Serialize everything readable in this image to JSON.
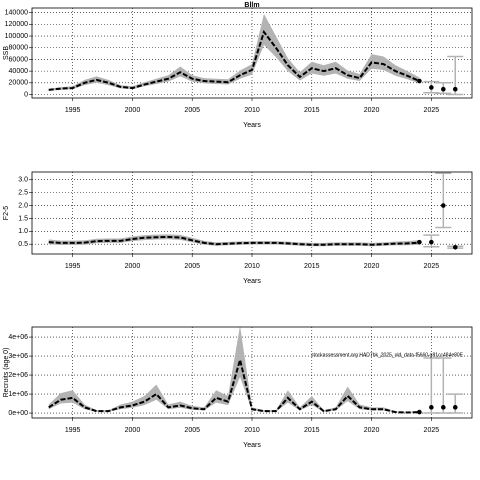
{
  "chart_data": [
    {
      "type": "line",
      "title": "Bllm",
      "y_label": "SSB",
      "x_label": "Years",
      "x": [
        1993,
        1994,
        1995,
        1996,
        1997,
        1998,
        1999,
        2000,
        2001,
        2002,
        2003,
        2004,
        2005,
        2006,
        2007,
        2008,
        2009,
        2010,
        2011,
        2012,
        2013,
        2014,
        2015,
        2016,
        2017,
        2018,
        2019,
        2020,
        2021,
        2022,
        2023,
        2024
      ],
      "values": [
        8000,
        10000,
        11000,
        20000,
        25000,
        20000,
        13000,
        11000,
        17000,
        22000,
        27000,
        38000,
        27000,
        23000,
        22000,
        21000,
        33000,
        42000,
        107000,
        80000,
        50000,
        30000,
        45000,
        40000,
        45000,
        33000,
        28000,
        55000,
        52000,
        40000,
        32000,
        23000
      ],
      "lower": [
        6500,
        8000,
        9000,
        16000,
        20000,
        16000,
        10500,
        9000,
        14000,
        18000,
        22000,
        31000,
        22000,
        19000,
        18000,
        17000,
        27000,
        34000,
        85000,
        64000,
        40000,
        24000,
        36000,
        32000,
        36000,
        27000,
        23000,
        44000,
        42000,
        32000,
        26000,
        19000
      ],
      "upper": [
        10000,
        12500,
        14000,
        25000,
        31000,
        25000,
        16000,
        14000,
        21000,
        27000,
        33000,
        48000,
        33000,
        28000,
        27000,
        26000,
        41000,
        52000,
        138000,
        100000,
        62000,
        38000,
        56000,
        50000,
        56000,
        41000,
        35000,
        69000,
        65000,
        50000,
        40000,
        29000
      ],
      "proj_x": [
        2024,
        2025,
        2026,
        2027
      ],
      "proj_values": [
        23000,
        12000,
        9000,
        9000
      ],
      "proj_lower": [
        null,
        3000,
        2000,
        0
      ],
      "proj_upper": [
        null,
        22000,
        20000,
        65000
      ],
      "xlim": [
        1991.6,
        2028.4
      ],
      "ylim": [
        -6000,
        148000
      ],
      "xticks": [
        1995,
        2000,
        2005,
        2010,
        2015,
        2020,
        2025
      ],
      "yticks": [
        0,
        20000,
        40000,
        60000,
        80000,
        100000,
        120000,
        140000
      ],
      "grid": true,
      "line_color": "#000000",
      "band_color": "#b3b3b3",
      "bar_color": "#b3b3b3"
    },
    {
      "type": "line",
      "y_label": "F2-5",
      "x_label": "Years",
      "x": [
        1993,
        1994,
        1995,
        1996,
        1997,
        1998,
        1999,
        2000,
        2001,
        2002,
        2003,
        2004,
        2005,
        2006,
        2007,
        2008,
        2009,
        2010,
        2011,
        2012,
        2013,
        2014,
        2015,
        2016,
        2017,
        2018,
        2019,
        2020,
        2021,
        2022,
        2023,
        2024
      ],
      "values": [
        0.58,
        0.55,
        0.55,
        0.56,
        0.62,
        0.63,
        0.63,
        0.7,
        0.75,
        0.77,
        0.78,
        0.76,
        0.65,
        0.55,
        0.5,
        0.52,
        0.54,
        0.55,
        0.55,
        0.55,
        0.53,
        0.5,
        0.48,
        0.48,
        0.5,
        0.5,
        0.5,
        0.48,
        0.5,
        0.52,
        0.53,
        0.56
      ],
      "lower": [
        0.5,
        0.47,
        0.47,
        0.48,
        0.54,
        0.55,
        0.55,
        0.62,
        0.66,
        0.68,
        0.69,
        0.67,
        0.57,
        0.48,
        0.44,
        0.46,
        0.48,
        0.49,
        0.49,
        0.49,
        0.47,
        0.44,
        0.42,
        0.42,
        0.44,
        0.44,
        0.44,
        0.42,
        0.44,
        0.46,
        0.46,
        0.48
      ],
      "upper": [
        0.68,
        0.64,
        0.64,
        0.65,
        0.71,
        0.72,
        0.72,
        0.8,
        0.85,
        0.87,
        0.88,
        0.86,
        0.75,
        0.63,
        0.57,
        0.59,
        0.61,
        0.62,
        0.62,
        0.62,
        0.6,
        0.57,
        0.55,
        0.55,
        0.57,
        0.57,
        0.57,
        0.55,
        0.57,
        0.6,
        0.62,
        0.66
      ],
      "proj_x": [
        2024,
        2025,
        2026,
        2027
      ],
      "proj_values": [
        0.58,
        0.58,
        2.0,
        0.38
      ],
      "proj_lower": [
        null,
        0.4,
        1.15,
        0.35
      ],
      "proj_upper": [
        null,
        0.85,
        3.25,
        0.42
      ],
      "xlim": [
        1991.6,
        2028.4
      ],
      "ylim": [
        0.12,
        3.3
      ],
      "xticks": [
        1995,
        2000,
        2005,
        2010,
        2015,
        2020,
        2025
      ],
      "yticks": [
        0.5,
        {
          "value": 1,
          "label": "1.0"
        },
        1.5,
        {
          "value": 2,
          "label": "2.0"
        },
        2.5,
        {
          "value": 3,
          "label": "3.0"
        }
      ],
      "grid": true,
      "line_color": "#000000",
      "band_color": "#b3b3b3",
      "bar_color": "#b3b3b3"
    },
    {
      "type": "line",
      "y_label": "Recruits (age 0)",
      "x_label": "Years",
      "annotation": "stockassessment.org HAD7bk_2025_old_data-f5660-g81cc484e80E",
      "x": [
        1993,
        1994,
        1995,
        1996,
        1997,
        1998,
        1999,
        2000,
        2001,
        2002,
        2003,
        2004,
        2005,
        2006,
        2007,
        2008,
        2009,
        2010,
        2011,
        2012,
        2013,
        2014,
        2015,
        2016,
        2017,
        2018,
        2019,
        2020,
        2021,
        2022,
        2023,
        2024
      ],
      "values": [
        300000,
        700000,
        800000,
        300000,
        100000,
        100000,
        300000,
        400000,
        600000,
        1000000,
        300000,
        400000,
        250000,
        200000,
        800000,
        600000,
        2800000,
        200000,
        100000,
        100000,
        800000,
        200000,
        600000,
        100000,
        200000,
        900000,
        300000,
        200000,
        200000,
        50000,
        30000,
        50000
      ],
      "lower": [
        200000,
        500000,
        550000,
        200000,
        70000,
        70000,
        200000,
        280000,
        420000,
        700000,
        200000,
        280000,
        170000,
        140000,
        550000,
        420000,
        1900000,
        140000,
        70000,
        70000,
        550000,
        140000,
        420000,
        70000,
        140000,
        630000,
        200000,
        140000,
        140000,
        30000,
        20000,
        30000
      ],
      "upper": [
        450000,
        1050000,
        1200000,
        450000,
        150000,
        150000,
        450000,
        600000,
        900000,
        1500000,
        450000,
        600000,
        380000,
        300000,
        1200000,
        900000,
        4600000,
        300000,
        150000,
        150000,
        1200000,
        300000,
        900000,
        150000,
        300000,
        1400000,
        450000,
        300000,
        300000,
        80000,
        60000,
        100000
      ],
      "proj_x": [
        2024,
        2025,
        2026,
        2027
      ],
      "proj_values": [
        50000,
        300000,
        300000,
        300000
      ],
      "proj_lower": [
        null,
        0,
        0,
        0
      ],
      "proj_upper": [
        null,
        2900000,
        2900000,
        1000000
      ],
      "xlim": [
        1991.6,
        2028.4
      ],
      "ylim": [
        -260000,
        4530000
      ],
      "xticks": [
        1995,
        2000,
        2005,
        2010,
        2015,
        2020,
        2025
      ],
      "yticks": [
        {
          "value": 0,
          "label": "0e+00"
        },
        {
          "value": 1000000,
          "label": "1e+06"
        },
        {
          "value": 2000000,
          "label": "2e+06"
        },
        {
          "value": 3000000,
          "label": "3e+06"
        },
        {
          "value": 4000000,
          "label": "4e+06"
        }
      ],
      "grid": true,
      "line_color": "#000000",
      "band_color": "#b3b3b3",
      "bar_color": "#b3b3b3"
    }
  ]
}
